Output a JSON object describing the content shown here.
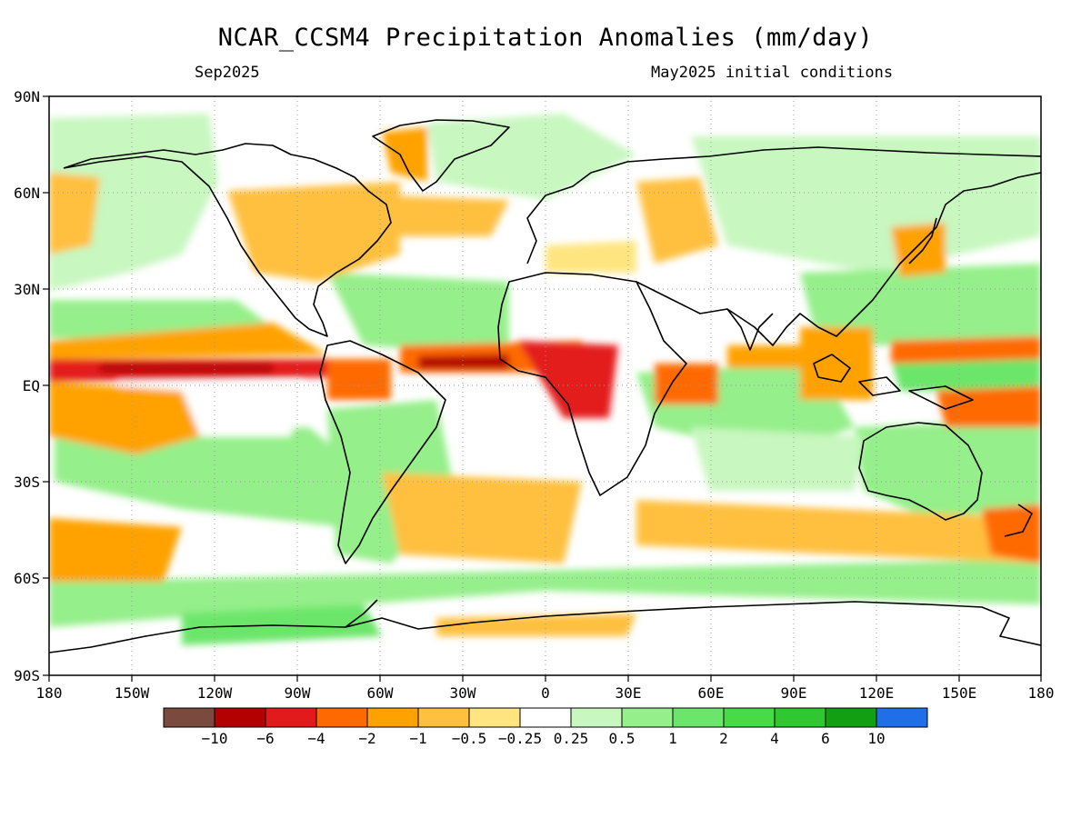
{
  "title": "NCAR_CCSM4 Precipitation Anomalies (mm/day)",
  "valid_month": "Sep2025",
  "init_conditions": "May2025 initial conditions",
  "lat_labels": [
    "90N",
    "60N",
    "30N",
    "EQ",
    "30S",
    "60S",
    "90S"
  ],
  "lon_labels": [
    "180",
    "150W",
    "120W",
    "90W",
    "60W",
    "30W",
    "0",
    "30E",
    "60E",
    "90E",
    "120E",
    "150E",
    "180"
  ],
  "legend": {
    "colors": [
      "#7a4a3f",
      "#b30000",
      "#e31a1c",
      "#ff6a00",
      "#ffa200",
      "#ffc040",
      "#ffe580",
      "#ffffff",
      "#c8f7c0",
      "#95ef8a",
      "#6ce66a",
      "#47dc47",
      "#30c830",
      "#12a012",
      "#1e6fe8"
    ],
    "labels": [
      "-10",
      "-6",
      "-4",
      "-2",
      "-1",
      "-0.5",
      "-0.25",
      "0.25",
      "0.5",
      "1",
      "2",
      "4",
      "6",
      "10"
    ]
  },
  "map_regions": [
    {
      "name": "pacific-itcz-dry-band",
      "value": "-4",
      "color": "#e31a1c"
    },
    {
      "name": "atlantic-itcz-dry-band",
      "value": "-6",
      "color": "#b30000"
    },
    {
      "name": "central-africa-dry",
      "value": "-4",
      "color": "#e31a1c"
    },
    {
      "name": "equatorial-pacific-wet",
      "value": "1",
      "color": "#95ef8a"
    },
    {
      "name": "indian-ocean-wet",
      "value": "1",
      "color": "#95ef8a"
    },
    {
      "name": "australia-wet",
      "value": "0.5",
      "color": "#c8f7c0"
    },
    {
      "name": "southern-ocean-wet-band",
      "value": "1",
      "color": "#95ef8a"
    }
  ]
}
